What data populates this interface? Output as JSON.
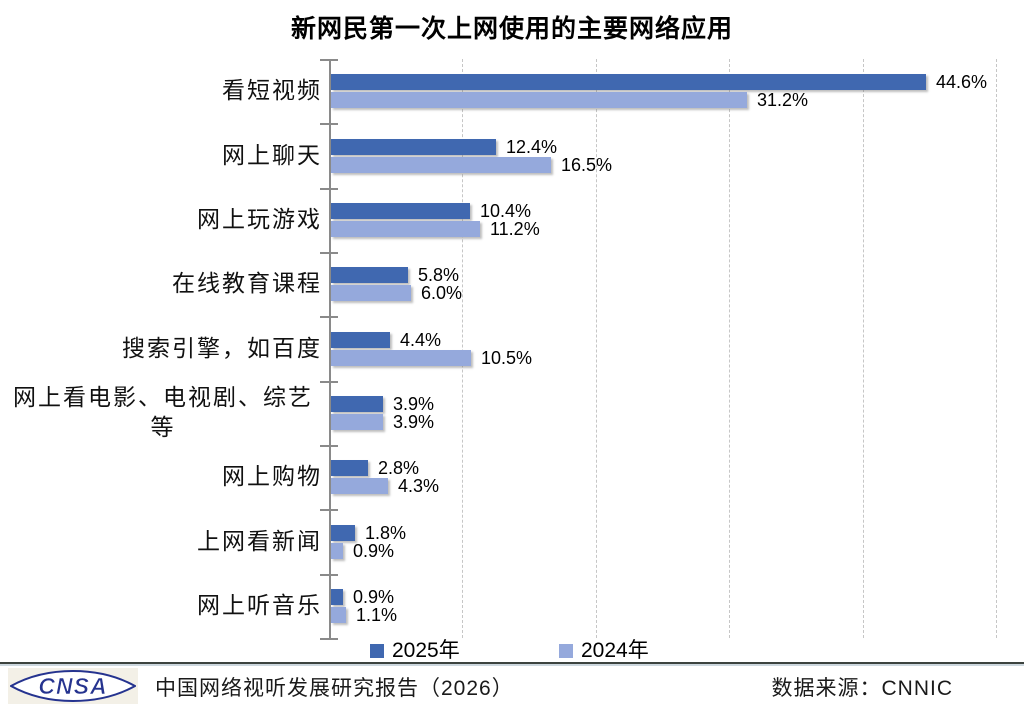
{
  "title": "新网民第一次上网使用的主要网络应用",
  "chart_data": {
    "type": "bar",
    "orientation": "horizontal",
    "categories": [
      "看短视频",
      "网上聊天",
      "网上玩游戏",
      "在线教育课程",
      "搜索引擎，如百度",
      "网上看电影、电视剧、综艺\n等",
      "网上购物",
      "上网看新闻",
      "网上听音乐"
    ],
    "series": [
      {
        "name": "2025年",
        "color": "#4068b0",
        "values": [
          44.6,
          12.4,
          10.4,
          5.8,
          4.4,
          3.9,
          2.8,
          1.8,
          0.9
        ]
      },
      {
        "name": "2024年",
        "color": "#95a9dc",
        "values": [
          31.2,
          16.5,
          11.2,
          6.0,
          10.5,
          3.9,
          4.3,
          0.9,
          1.1
        ]
      }
    ],
    "value_suffix": "%",
    "xlim": [
      0,
      50
    ],
    "gridline_interval": 10,
    "grid": "dashed-vertical",
    "legend_position": "bottom"
  },
  "footer": {
    "logo_text": "CNSA",
    "report_title": "中国网络视听发展研究报告（2026）",
    "data_source": "数据来源：CNNIC"
  }
}
